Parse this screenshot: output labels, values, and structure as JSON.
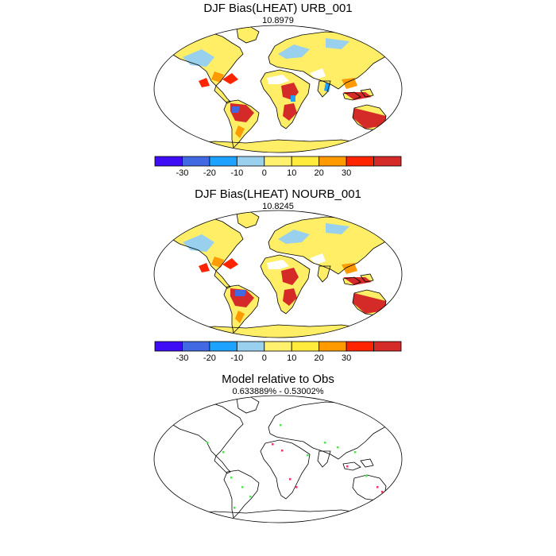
{
  "panels": [
    {
      "title": "DJF Bias(LHEAT) URB_001",
      "subtitle": "10.8979"
    },
    {
      "title": "DJF Bias(LHEAT) NOURB_001",
      "subtitle": "10.8245"
    },
    {
      "title": "Model relative to Obs",
      "subtitle": "0.633889% - 0.53002%"
    }
  ],
  "colorbar": {
    "colors": [
      "#3e0cf5",
      "#4169e1",
      "#1ea2ff",
      "#98d0ee",
      "#fff06e",
      "#ffeb3b",
      "#ff9a00",
      "#ff2400",
      "#d42a28"
    ],
    "tick_labels": [
      "-30",
      "-20",
      "-10",
      "0",
      "10",
      "20",
      "30"
    ]
  },
  "change_colors": {
    "increase": "#55e055",
    "decrease": "#ff3060"
  }
}
